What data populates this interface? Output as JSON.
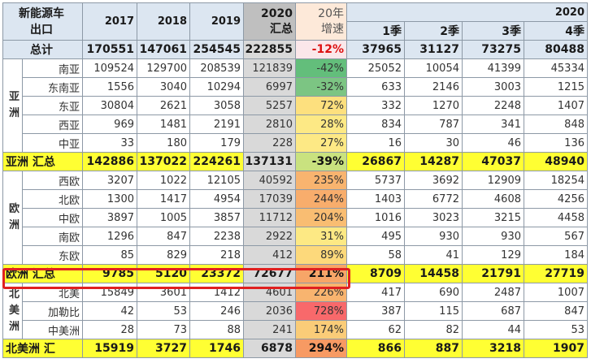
{
  "header": {
    "corner_line1": "新能源车",
    "corner_line2": "出口",
    "y2017": "2017",
    "y2018": "2018",
    "y2019": "2019",
    "y2020_line1": "2020",
    "y2020_line2": "汇总",
    "growth_line1": "20年",
    "growth_line2": "增速",
    "year_span": "2020",
    "q1": "1季",
    "q2": "2季",
    "q3": "3季",
    "q4": "4季"
  },
  "groups": {
    "asia_line1": "亚",
    "asia_line2": "洲",
    "europe_line1": "欧",
    "europe_line2": "洲",
    "namerica_line1": "北",
    "namerica_line2": "美",
    "namerica_line3": "洲"
  },
  "colors": {
    "header_bg": "#dce6f1",
    "sum_bg": "#ffff33",
    "col2020_bg": "#d9d9d9",
    "highlight_border": "#e02020"
  },
  "rows": [
    {
      "type": "total",
      "label": "总计",
      "v2017": "170551",
      "v2018": "147061",
      "v2019": "254545",
      "v2020": "222855",
      "growth": "-12%",
      "growth_color": "#fbe7ea",
      "growth_text": "#d11",
      "q1": "37965",
      "q2": "31127",
      "q3": "73275",
      "q4": "80488"
    },
    {
      "type": "body",
      "label": "南亚",
      "v2017": "109524",
      "v2018": "129700",
      "v2019": "208539",
      "v2020": "121839",
      "growth": "-42%",
      "growth_color": "#63be7b",
      "growth_text": "#333",
      "q1": "25052",
      "q2": "10054",
      "q3": "41399",
      "q4": "45334"
    },
    {
      "type": "body",
      "label": "东南亚",
      "v2017": "1556",
      "v2018": "3040",
      "v2019": "10294",
      "v2020": "6997",
      "growth": "-32%",
      "growth_color": "#7cc583",
      "growth_text": "#333",
      "q1": "633",
      "q2": "2146",
      "q3": "3003",
      "q4": "1215"
    },
    {
      "type": "body",
      "label": "东亚",
      "v2017": "30804",
      "v2018": "2621",
      "v2019": "3058",
      "v2020": "5257",
      "growth": "72%",
      "growth_color": "#fde07e",
      "growth_text": "#333",
      "q1": "332",
      "q2": "1270",
      "q3": "2248",
      "q4": "1407"
    },
    {
      "type": "body",
      "label": "西亚",
      "v2017": "969",
      "v2018": "1481",
      "v2019": "2191",
      "v2020": "2810",
      "growth": "28%",
      "growth_color": "#fde985",
      "growth_text": "#333",
      "q1": "834",
      "q2": "787",
      "q3": "341",
      "q4": "848"
    },
    {
      "type": "body",
      "label": "中亚",
      "v2017": "33",
      "v2018": "180",
      "v2019": "179",
      "v2020": "228",
      "growth": "27%",
      "growth_color": "#fde985",
      "growth_text": "#333",
      "q1": "16",
      "q2": "30",
      "q3": "46",
      "q4": "136"
    },
    {
      "type": "sum",
      "label": "亚洲 汇总",
      "v2017": "142886",
      "v2018": "137022",
      "v2019": "224261",
      "v2020": "137131",
      "growth": "-39%",
      "growth_color": "#c9e27f",
      "growth_text": "#111",
      "q1": "26867",
      "q2": "14287",
      "q3": "47037",
      "q4": "48940"
    },
    {
      "type": "body",
      "label": "西欧",
      "v2017": "3207",
      "v2018": "1022",
      "v2019": "12105",
      "v2020": "40592",
      "growth": "235%",
      "growth_color": "#f8b46f",
      "growth_text": "#333",
      "q1": "5737",
      "q2": "3692",
      "q3": "12909",
      "q4": "18254"
    },
    {
      "type": "body",
      "label": "北欧",
      "v2017": "1300",
      "v2018": "1417",
      "v2019": "4954",
      "v2020": "17039",
      "growth": "244%",
      "growth_color": "#f8ad6c",
      "growth_text": "#333",
      "q1": "1403",
      "q2": "6772",
      "q3": "4608",
      "q4": "4256"
    },
    {
      "type": "body",
      "label": "中欧",
      "v2017": "3897",
      "v2018": "1005",
      "v2019": "3857",
      "v2020": "11712",
      "growth": "204%",
      "growth_color": "#f9bd72",
      "growth_text": "#333",
      "q1": "1016",
      "q2": "3023",
      "q3": "3215",
      "q4": "4458"
    },
    {
      "type": "body",
      "label": "南欧",
      "v2017": "1296",
      "v2018": "847",
      "v2019": "2238",
      "v2020": "2922",
      "growth": "31%",
      "growth_color": "#fde984",
      "growth_text": "#333",
      "q1": "495",
      "q2": "930",
      "q3": "930",
      "q4": "567"
    },
    {
      "type": "body",
      "label": "东欧",
      "v2017": "85",
      "v2018": "829",
      "v2019": "218",
      "v2020": "412",
      "growth": "89%",
      "growth_color": "#fdd97b",
      "growth_text": "#333",
      "q1": "58",
      "q2": "41",
      "q3": "129",
      "q4": "184"
    },
    {
      "type": "sum",
      "label": "欧洲 汇总",
      "v2017": "9785",
      "v2018": "5120",
      "v2019": "23372",
      "v2020": "72677",
      "growth": "211%",
      "growth_color": "#f7a568",
      "growth_text": "#111",
      "q1": "8709",
      "q2": "14458",
      "q3": "21791",
      "q4": "27719"
    },
    {
      "type": "body",
      "label": "北美",
      "v2017": "15849",
      "v2018": "3601",
      "v2019": "1412",
      "v2020": "4601",
      "growth": "226%",
      "growth_color": "#f8b46f",
      "growth_text": "#333",
      "q1": "417",
      "q2": "690",
      "q3": "2487",
      "q4": "1007"
    },
    {
      "type": "body",
      "label": "加勒比",
      "v2017": "42",
      "v2018": "53",
      "v2019": "246",
      "v2020": "2036",
      "growth": "728%",
      "growth_color": "#f8696b",
      "growth_text": "#333",
      "q1": "387",
      "q2": "115",
      "q3": "687",
      "q4": "847"
    },
    {
      "type": "body",
      "label": "中美洲",
      "v2017": "28",
      "v2018": "73",
      "v2019": "88",
      "v2020": "241",
      "growth": "174%",
      "growth_color": "#facc78",
      "growth_text": "#333",
      "q1": "62",
      "q2": "82",
      "q3": "44",
      "q4": "53"
    },
    {
      "type": "sum",
      "label": "北美洲 汇",
      "v2017": "15919",
      "v2018": "3727",
      "v2019": "1746",
      "v2020": "6878",
      "growth": "294%",
      "growth_color": "#f79a63",
      "growth_text": "#111",
      "q1": "866",
      "q2": "887",
      "q3": "3218",
      "q4": "1907"
    }
  ]
}
